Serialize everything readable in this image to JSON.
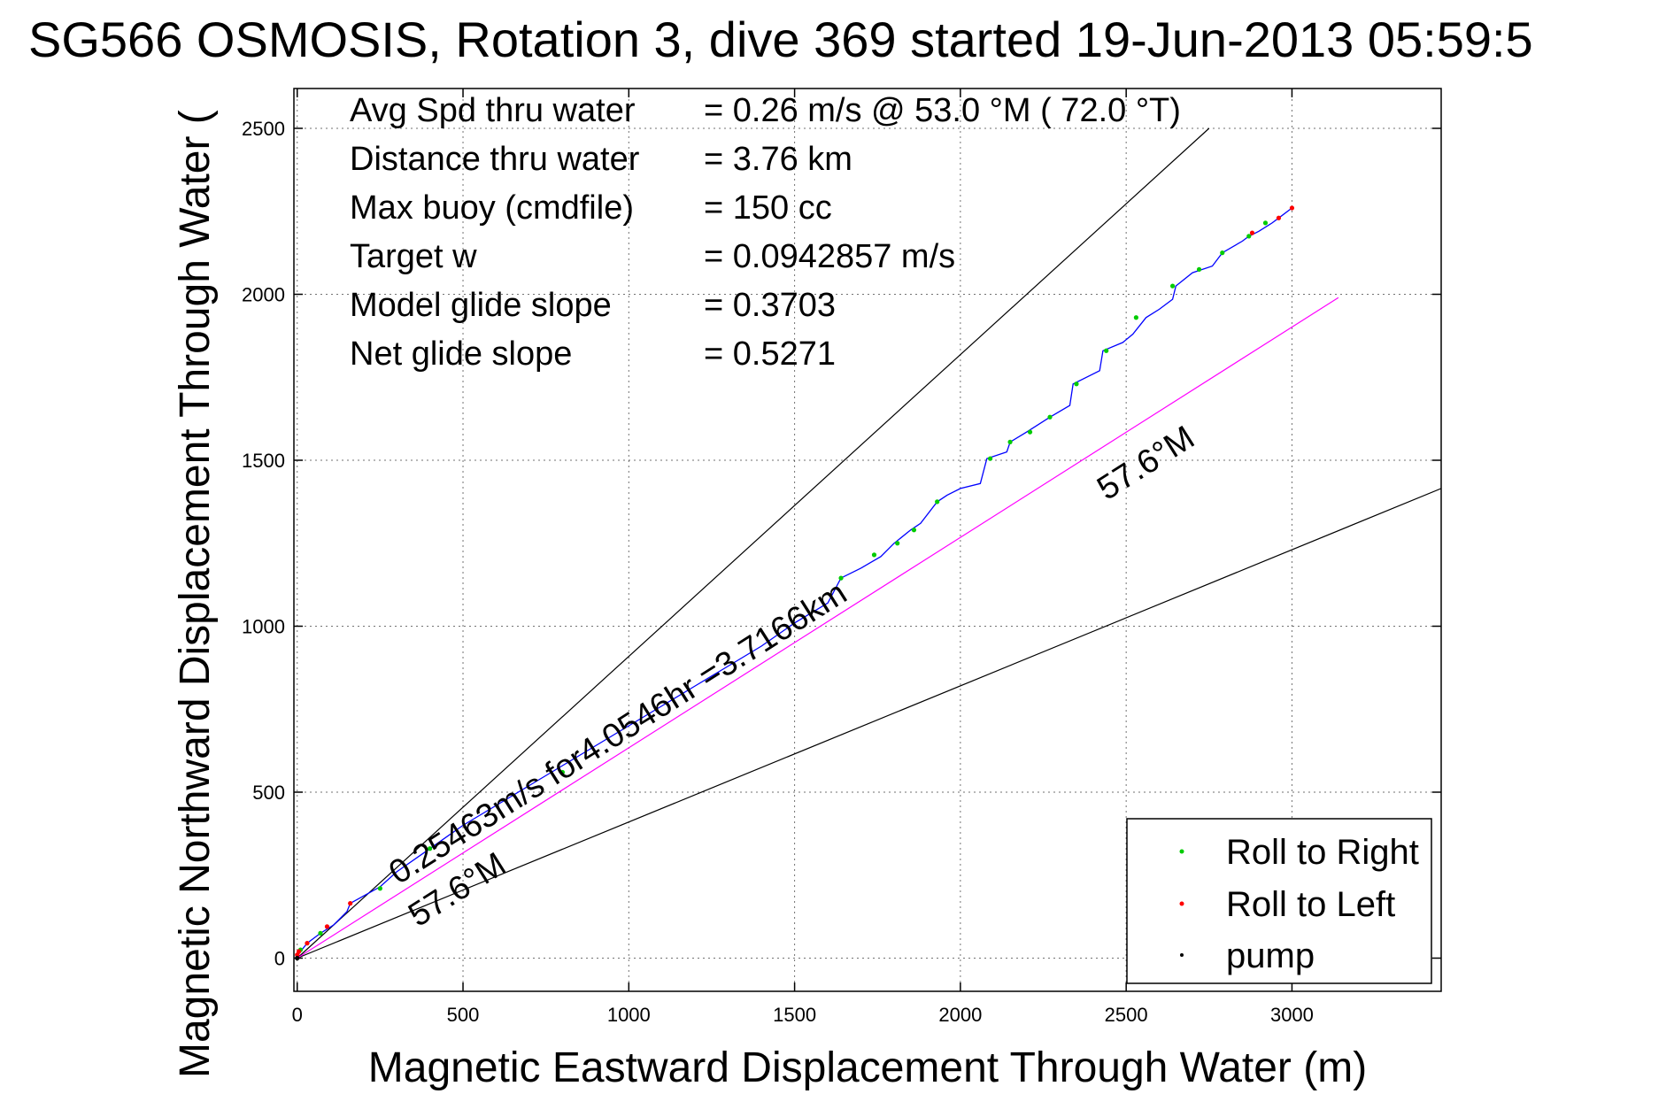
{
  "chart_data": {
    "type": "line",
    "title": "SG566 OSMOSIS, Rotation 3, dive 369 started 19-Jun-2013 05:59:5",
    "xlabel": "Magnetic Eastward Displacement Through Water (m)",
    "ylabel": "Magnetic Northward Displacement Through Water (",
    "xlim": [
      -10,
      3450
    ],
    "ylim": [
      -100,
      2620
    ],
    "xticks": [
      0,
      500,
      1000,
      1500,
      2000,
      2500,
      3000
    ],
    "yticks": [
      0,
      500,
      1000,
      1500,
      2000,
      2500
    ],
    "grid": true,
    "info_lines": [
      {
        "label": "Avg Spd thru water",
        "value": "=  0.26 m/s @  53.0 °M ( 72.0 °T)"
      },
      {
        "label": "Distance thru water",
        "value": "=  3.76 km"
      },
      {
        "label": "Max buoy (cmdfile)",
        "value": "= 150 cc"
      },
      {
        "label": "Target w",
        "value": "= 0.0942857 m/s"
      },
      {
        "label": "Model glide slope",
        "value": "= 0.3703"
      },
      {
        "label": "Net glide slope",
        "value": "= 0.5271"
      }
    ],
    "annotations": {
      "track_label": "0.25463m/s for4.0546hr =3.7166km",
      "heading_label_lower": "57.6°M",
      "heading_label_upper": "57.6°M"
    },
    "reference_lines": [
      {
        "name": "upper bound",
        "color": "#000000",
        "x": [
          0,
          2750
        ],
        "y": [
          0,
          2500
        ]
      },
      {
        "name": "lower bound",
        "color": "#000000",
        "x": [
          0,
          3450
        ],
        "y": [
          0,
          1415
        ]
      },
      {
        "name": "heading 57.6°M",
        "color": "#ff00ff",
        "x": [
          0,
          3140
        ],
        "y": [
          0,
          1990
        ]
      }
    ],
    "track": {
      "color": "#0000ff",
      "x": [
        0,
        10,
        30,
        70,
        110,
        150,
        160,
        250,
        300,
        400,
        500,
        600,
        700,
        800,
        900,
        1000,
        1100,
        1200,
        1300,
        1400,
        1500,
        1600,
        1640,
        1700,
        1760,
        1800,
        1850,
        1880,
        1930,
        1960,
        2000,
        2060,
        2080,
        2140,
        2150,
        2200,
        2270,
        2330,
        2340,
        2420,
        2430,
        2490,
        2520,
        2560,
        2600,
        2640,
        2650,
        2700,
        2760,
        2790,
        2850,
        2870,
        2900,
        2940,
        2960,
        3000
      ],
      "y": [
        5,
        20,
        45,
        75,
        100,
        140,
        165,
        215,
        260,
        330,
        400,
        460,
        520,
        580,
        640,
        700,
        760,
        820,
        880,
        940,
        1010,
        1070,
        1145,
        1175,
        1210,
        1250,
        1290,
        1310,
        1375,
        1395,
        1415,
        1430,
        1505,
        1525,
        1555,
        1585,
        1630,
        1665,
        1730,
        1770,
        1830,
        1855,
        1880,
        1930,
        1955,
        1985,
        2025,
        2065,
        2085,
        2125,
        2160,
        2175,
        2190,
        2215,
        2230,
        2260
      ]
    },
    "series": [
      {
        "name": "Roll to Right",
        "color": "#00cc00",
        "x": [
          10,
          70,
          250,
          400,
          800,
          1640,
          1740,
          1810,
          1860,
          1930,
          2090,
          2150,
          2210,
          2270,
          2350,
          2440,
          2530,
          2640,
          2720,
          2790,
          2870,
          2920
        ],
        "y": [
          25,
          75,
          210,
          330,
          560,
          1145,
          1215,
          1250,
          1290,
          1375,
          1505,
          1555,
          1585,
          1630,
          1730,
          1830,
          1930,
          2025,
          2075,
          2125,
          2175,
          2215
        ]
      },
      {
        "name": "Roll to Left",
        "color": "#ff0000",
        "x": [
          0,
          5,
          30,
          90,
          160,
          2880,
          2960,
          3000
        ],
        "y": [
          10,
          20,
          45,
          95,
          165,
          2185,
          2230,
          2260
        ]
      },
      {
        "name": "pump",
        "color": "#000000",
        "x": [
          0
        ],
        "y": [
          0
        ]
      }
    ],
    "legend": {
      "position": "bottom-right",
      "entries": [
        {
          "label": "Roll to Right",
          "color": "#00cc00"
        },
        {
          "label": "Roll to Left",
          "color": "#ff0000"
        },
        {
          "label": "pump",
          "color": "#000000"
        }
      ]
    }
  }
}
